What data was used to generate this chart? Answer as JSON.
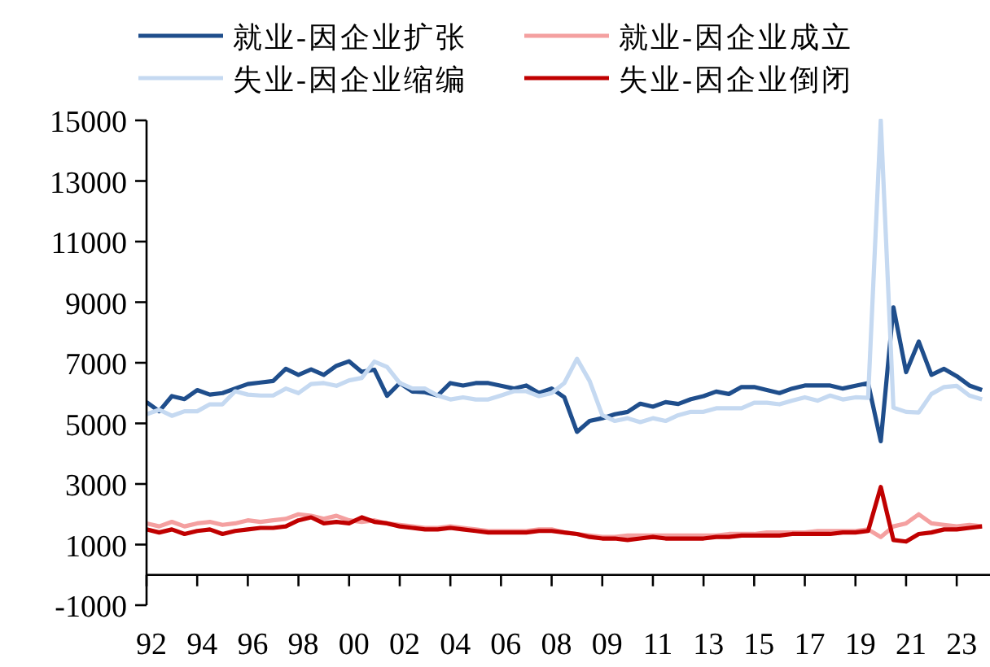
{
  "chart_data": {
    "type": "line",
    "legend": "top",
    "categories": [
      "92",
      null,
      null,
      null,
      "94",
      null,
      null,
      null,
      "96",
      null,
      null,
      null,
      "98",
      null,
      null,
      null,
      "00",
      null,
      null,
      null,
      "02",
      null,
      null,
      null,
      "04",
      null,
      null,
      null,
      "06",
      null,
      null,
      null,
      "08",
      null,
      null,
      null,
      "09",
      null,
      null,
      null,
      "11",
      null,
      null,
      null,
      "13",
      null,
      null,
      null,
      "15",
      null,
      null,
      null,
      "17",
      null,
      null,
      null,
      "19",
      null,
      null,
      null,
      "21",
      null,
      null,
      null,
      "23",
      null,
      null
    ],
    "ylim": [
      -1000,
      15000
    ],
    "yticks": [
      -1000,
      1000,
      3000,
      5000,
      7000,
      9000,
      11000,
      13000,
      15000
    ],
    "series": [
      {
        "name": "就业-因企业扩张",
        "color": "#1f4e8c",
        "values": [
          5700,
          5400,
          5900,
          5800,
          6100,
          5950,
          6000,
          6150,
          6300,
          6350,
          6400,
          6800,
          6600,
          6780,
          6600,
          6900,
          7050,
          6700,
          6770,
          5910,
          6330,
          6050,
          6030,
          5920,
          6330,
          6250,
          6330,
          6330,
          6240,
          6150,
          6250,
          6000,
          6150,
          5860,
          4720,
          5080,
          5170,
          5300,
          5380,
          5650,
          5550,
          5700,
          5640,
          5800,
          5900,
          6050,
          5970,
          6200,
          6200,
          6100,
          6000,
          6150,
          6250,
          6250,
          6250,
          6150,
          6240,
          6330,
          4410,
          8830,
          6690,
          7700,
          6600,
          6800,
          6560,
          6250,
          6100
        ]
      },
      {
        "name": "就业-因企业成立",
        "color": "#f4a0a0",
        "values": [
          1700,
          1600,
          1750,
          1600,
          1700,
          1750,
          1650,
          1700,
          1800,
          1750,
          1800,
          1850,
          2000,
          1950,
          1850,
          1950,
          1800,
          1750,
          1800,
          1700,
          1650,
          1600,
          1550,
          1550,
          1600,
          1550,
          1500,
          1450,
          1450,
          1450,
          1450,
          1500,
          1500,
          1400,
          1350,
          1300,
          1250,
          1250,
          1300,
          1300,
          1300,
          1300,
          1300,
          1300,
          1300,
          1300,
          1350,
          1350,
          1350,
          1400,
          1400,
          1400,
          1400,
          1450,
          1450,
          1450,
          1450,
          1500,
          1250,
          1600,
          1700,
          2000,
          1700,
          1650,
          1600,
          1650,
          1600
        ]
      },
      {
        "name": "失业-因企业缩编",
        "color": "#c5d9f1",
        "values": [
          5300,
          5450,
          5250,
          5400,
          5400,
          5630,
          5630,
          6060,
          5950,
          5920,
          5920,
          6150,
          6000,
          6300,
          6330,
          6240,
          6420,
          6500,
          7040,
          6860,
          6330,
          6150,
          6150,
          5920,
          5790,
          5860,
          5790,
          5790,
          5920,
          6060,
          6060,
          5900,
          6000,
          6330,
          7130,
          6400,
          5270,
          5080,
          5170,
          5040,
          5170,
          5080,
          5270,
          5380,
          5380,
          5500,
          5500,
          5500,
          5680,
          5680,
          5630,
          5750,
          5860,
          5750,
          5920,
          5790,
          5860,
          5840,
          15000,
          5520,
          5380,
          5360,
          5970,
          6200,
          6240,
          5920,
          5790
        ]
      },
      {
        "name": "失业-因企业倒闭",
        "color": "#c00000",
        "values": [
          1500,
          1400,
          1500,
          1350,
          1450,
          1500,
          1350,
          1450,
          1500,
          1550,
          1550,
          1600,
          1800,
          1900,
          1700,
          1750,
          1700,
          1900,
          1750,
          1700,
          1600,
          1550,
          1500,
          1500,
          1550,
          1500,
          1450,
          1400,
          1400,
          1400,
          1400,
          1450,
          1450,
          1400,
          1350,
          1250,
          1200,
          1200,
          1150,
          1200,
          1250,
          1200,
          1200,
          1200,
          1200,
          1250,
          1250,
          1300,
          1300,
          1300,
          1300,
          1350,
          1350,
          1350,
          1350,
          1400,
          1400,
          1450,
          2900,
          1150,
          1100,
          1350,
          1400,
          1500,
          1500,
          1550,
          1600
        ]
      }
    ]
  }
}
